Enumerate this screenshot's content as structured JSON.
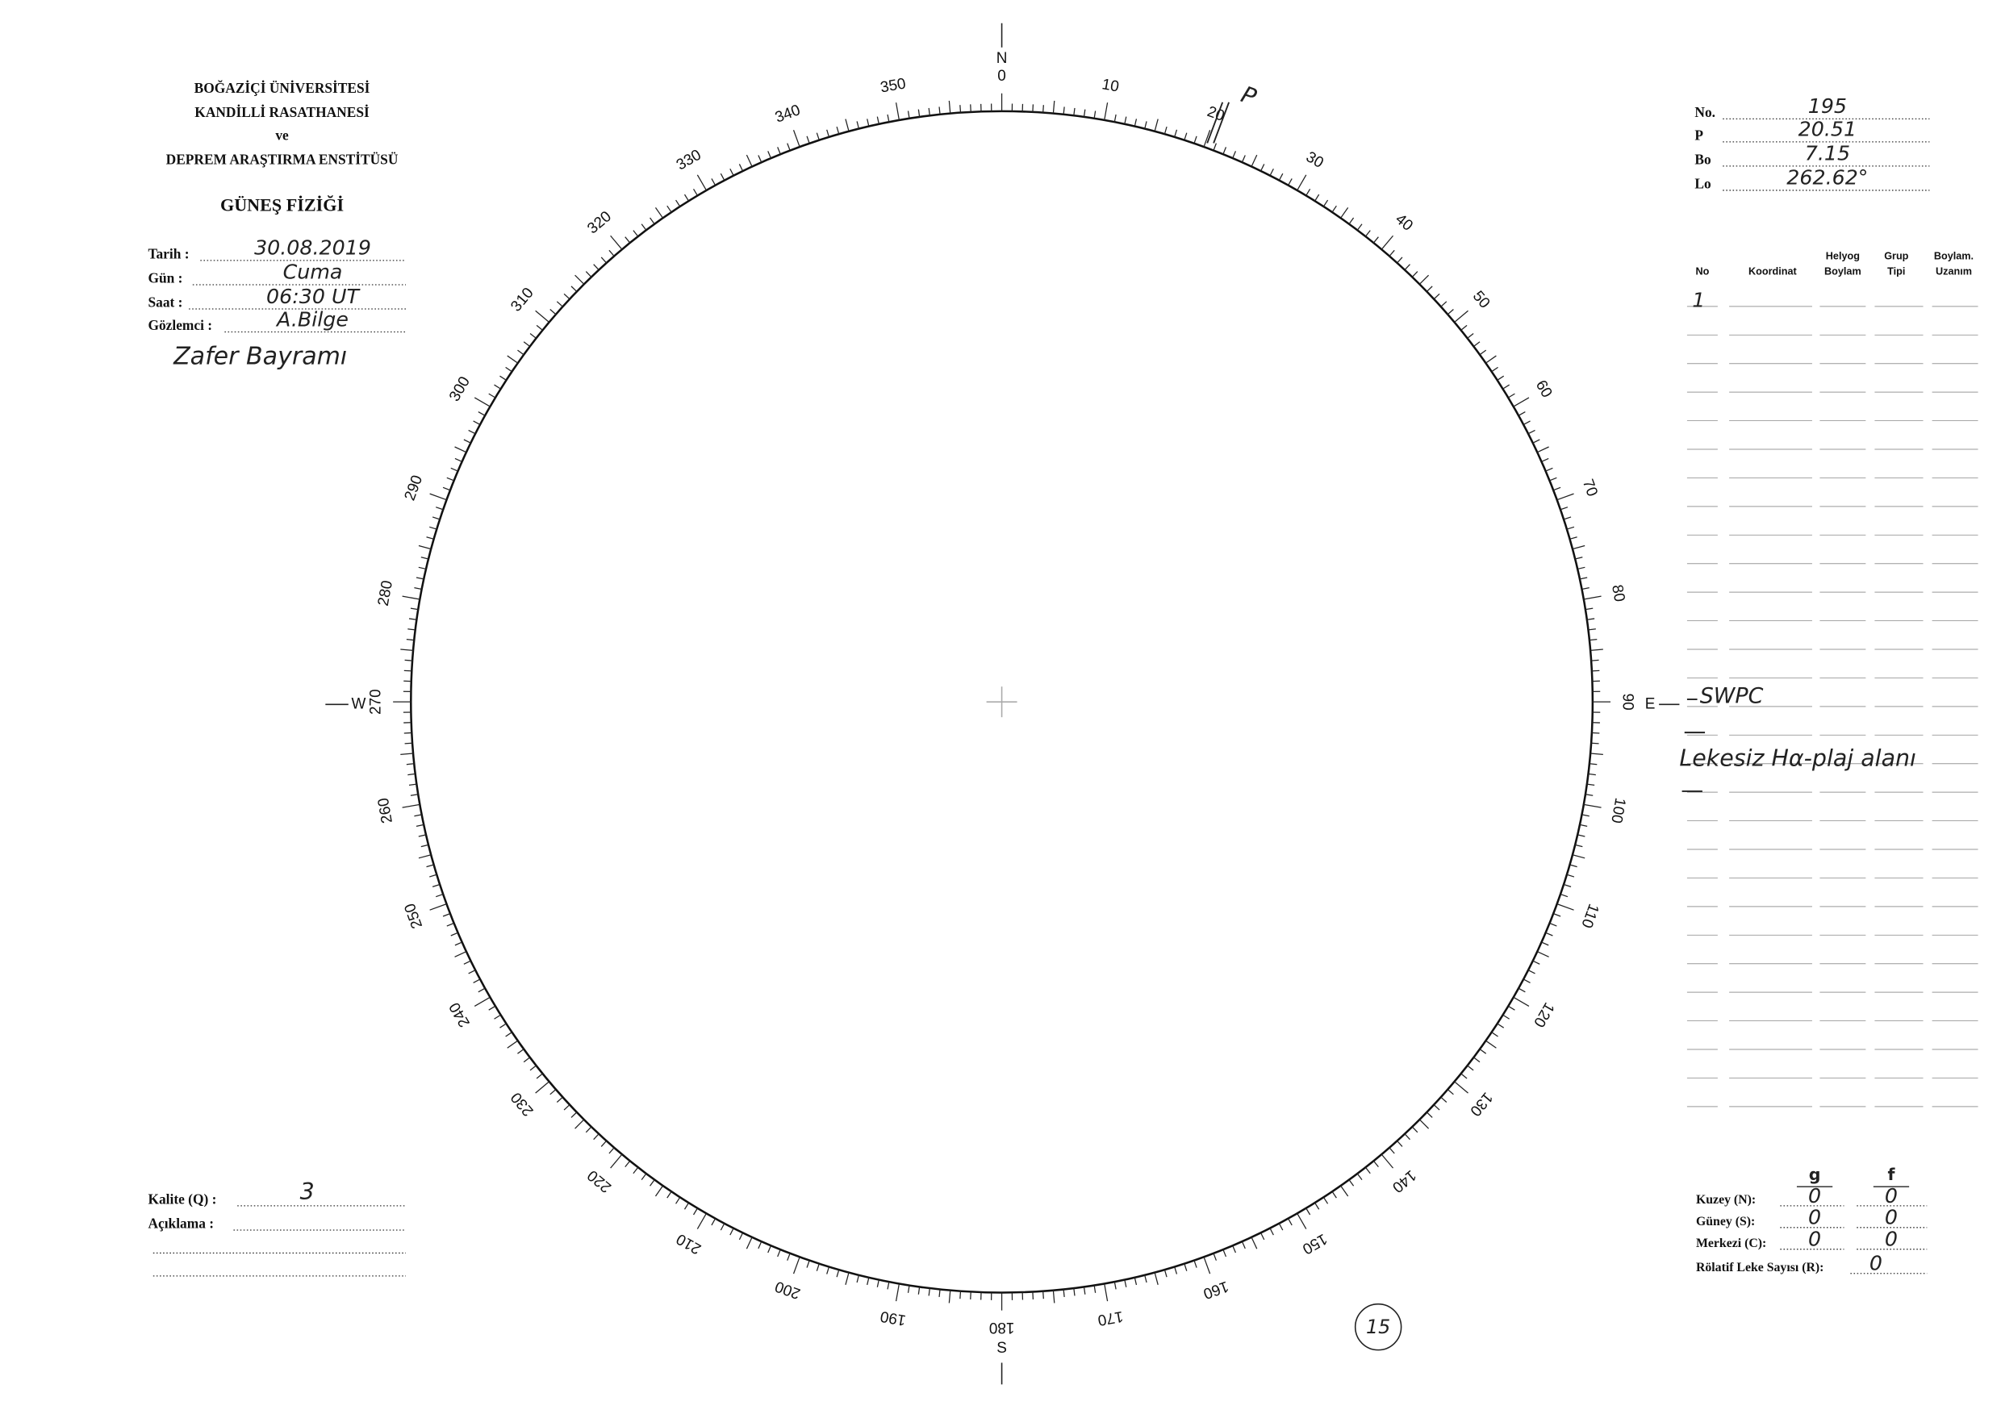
{
  "header": {
    "lines": [
      "BOĞAZİÇİ ÜNİVERSİTESİ",
      "KANDİLLİ RASATHANESİ",
      "ve",
      "DEPREM ARAŞTIRMA ENSTİTÜSÜ"
    ],
    "title": "GÜNEŞ FİZİĞİ"
  },
  "observation": {
    "fields": [
      {
        "label": "Tarih :",
        "value": "30.08.2019"
      },
      {
        "label": "Gün :",
        "value": "Cuma"
      },
      {
        "label": "Saat :",
        "value": "06:30 UT"
      },
      {
        "label": "Gözlemci :",
        "value": "A.Bilge"
      }
    ],
    "note": "Zafer Bayramı"
  },
  "solar_params": [
    {
      "label": "No.",
      "value": 195
    },
    {
      "label": "P",
      "value": 20.51
    },
    {
      "label": "Bo",
      "value": 7.15
    },
    {
      "label": "Lo",
      "value": "262.62°"
    }
  ],
  "groups_table": {
    "headers": [
      [
        "No"
      ],
      [
        "Koordinat"
      ],
      [
        "Helyog",
        "Boylam"
      ],
      [
        "Grup",
        "Tipi"
      ],
      [
        "Boylam.",
        "Uzanım"
      ]
    ],
    "entries": [
      "1"
    ]
  },
  "notes": [
    "SWPC",
    "Lekesiz Hα-plaj alanı"
  ],
  "dial": {
    "degrees": [
      0,
      10,
      20,
      30,
      40,
      50,
      60,
      70,
      80,
      90,
      100,
      110,
      120,
      130,
      140,
      150,
      160,
      170,
      180,
      190,
      200,
      210,
      220,
      230,
      240,
      250,
      260,
      270,
      280,
      290,
      300,
      310,
      320,
      330,
      340,
      350
    ],
    "cardinals": {
      "north": "N",
      "east": "E",
      "south": "S",
      "west": "W"
    },
    "pole_mark": "P"
  },
  "quality": {
    "label": "Kalite (Q) :",
    "value": 3
  },
  "remark": {
    "label": "Açıklama :"
  },
  "counts": {
    "column_headers": [
      "g",
      "f"
    ],
    "rows": [
      {
        "label": "Kuzey (N):",
        "g": 0,
        "f": 0
      },
      {
        "label": "Güney (S):",
        "g": 0,
        "f": 0
      },
      {
        "label": "Merkezi (C):",
        "g": 0,
        "f": 0
      }
    ],
    "relative": {
      "label": "Rölatif Leke Sayısı (R):",
      "value": 0
    }
  },
  "page_number": 15
}
